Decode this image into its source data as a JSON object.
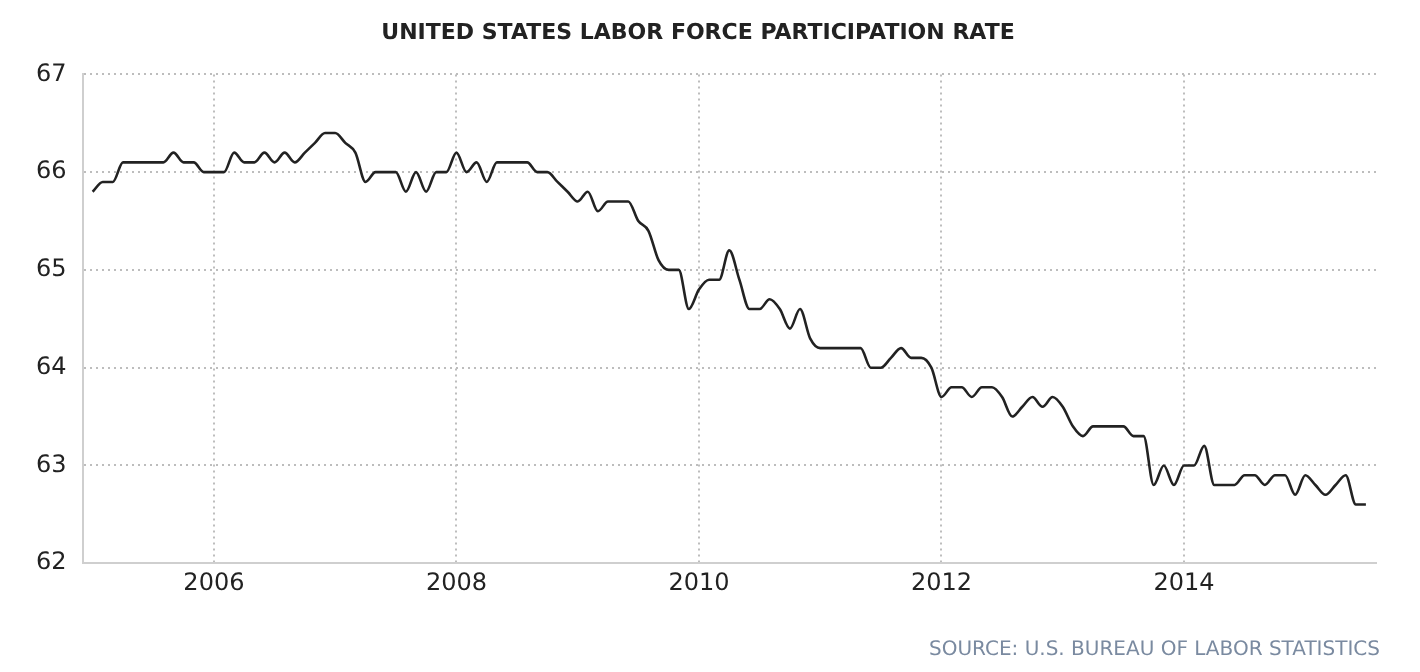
{
  "chart_data": {
    "type": "line",
    "title": "UNITED STATES LABOR FORCE PARTICIPATION RATE",
    "x": [
      "2005-01",
      "2005-02",
      "2005-03",
      "2005-04",
      "2005-05",
      "2005-06",
      "2005-07",
      "2005-08",
      "2005-09",
      "2005-10",
      "2005-11",
      "2005-12",
      "2006-01",
      "2006-02",
      "2006-03",
      "2006-04",
      "2006-05",
      "2006-06",
      "2006-07",
      "2006-08",
      "2006-09",
      "2006-10",
      "2006-11",
      "2006-12",
      "2007-01",
      "2007-02",
      "2007-03",
      "2007-04",
      "2007-05",
      "2007-06",
      "2007-07",
      "2007-08",
      "2007-09",
      "2007-10",
      "2007-11",
      "2007-12",
      "2008-01",
      "2008-02",
      "2008-03",
      "2008-04",
      "2008-05",
      "2008-06",
      "2008-07",
      "2008-08",
      "2008-09",
      "2008-10",
      "2008-11",
      "2008-12",
      "2009-01",
      "2009-02",
      "2009-03",
      "2009-04",
      "2009-05",
      "2009-06",
      "2009-07",
      "2009-08",
      "2009-09",
      "2009-10",
      "2009-11",
      "2009-12",
      "2010-01",
      "2010-02",
      "2010-03",
      "2010-04",
      "2010-05",
      "2010-06",
      "2010-07",
      "2010-08",
      "2010-09",
      "2010-10",
      "2010-11",
      "2010-12",
      "2011-01",
      "2011-02",
      "2011-03",
      "2011-04",
      "2011-05",
      "2011-06",
      "2011-07",
      "2011-08",
      "2011-09",
      "2011-10",
      "2011-11",
      "2011-12",
      "2012-01",
      "2012-02",
      "2012-03",
      "2012-04",
      "2012-05",
      "2012-06",
      "2012-07",
      "2012-08",
      "2012-09",
      "2012-10",
      "2012-11",
      "2012-12",
      "2013-01",
      "2013-02",
      "2013-03",
      "2013-04",
      "2013-05",
      "2013-06",
      "2013-07",
      "2013-08",
      "2013-09",
      "2013-10",
      "2013-11",
      "2013-12",
      "2014-01",
      "2014-02",
      "2014-03",
      "2014-04",
      "2014-05",
      "2014-06",
      "2014-07",
      "2014-08",
      "2014-09",
      "2014-10",
      "2014-11",
      "2014-12",
      "2015-01",
      "2015-02",
      "2015-03",
      "2015-04",
      "2015-05",
      "2015-06",
      "2015-07"
    ],
    "series": [
      {
        "color": "#222222",
        "values": [
          65.8,
          65.9,
          65.9,
          66.1,
          66.1,
          66.1,
          66.1,
          66.1,
          66.2,
          66.1,
          66.1,
          66.0,
          66.0,
          66.0,
          66.2,
          66.1,
          66.1,
          66.2,
          66.1,
          66.2,
          66.1,
          66.2,
          66.3,
          66.4,
          66.4,
          66.3,
          66.2,
          65.9,
          66.0,
          66.0,
          66.0,
          65.8,
          66.0,
          65.8,
          66.0,
          66.0,
          66.2,
          66.0,
          66.1,
          65.9,
          66.1,
          66.1,
          66.1,
          66.1,
          66.0,
          66.0,
          65.9,
          65.8,
          65.7,
          65.8,
          65.6,
          65.7,
          65.7,
          65.7,
          65.5,
          65.4,
          65.1,
          65.0,
          65.0,
          64.6,
          64.8,
          64.9,
          64.9,
          65.2,
          64.9,
          64.6,
          64.6,
          64.7,
          64.6,
          64.4,
          64.6,
          64.3,
          64.2,
          64.2,
          64.2,
          64.2,
          64.2,
          64.0,
          64.0,
          64.1,
          64.2,
          64.1,
          64.1,
          64.0,
          63.7,
          63.8,
          63.8,
          63.7,
          63.8,
          63.8,
          63.7,
          63.5,
          63.6,
          63.7,
          63.6,
          63.7,
          63.6,
          63.4,
          63.3,
          63.4,
          63.4,
          63.4,
          63.4,
          63.3,
          63.3,
          62.8,
          63.0,
          62.8,
          63.0,
          63.0,
          63.2,
          62.8,
          62.8,
          62.8,
          62.9,
          62.9,
          62.8,
          62.9,
          62.9,
          62.7,
          62.9,
          62.8,
          62.7,
          62.8,
          62.9,
          62.6,
          62.6
        ]
      }
    ],
    "xlim": [
      "2004-12",
      "2015-08"
    ],
    "xticks": [
      "2006",
      "2008",
      "2010",
      "2012",
      "2014"
    ],
    "ylim": [
      62,
      67
    ],
    "yticks": [
      62,
      63,
      64,
      65,
      66,
      67
    ],
    "grid": true,
    "legend": false,
    "marker": "none",
    "line_style": "solid",
    "annotations": [
      "SOURCE: U.S. BUREAU OF LABOR STATISTICS"
    ]
  }
}
